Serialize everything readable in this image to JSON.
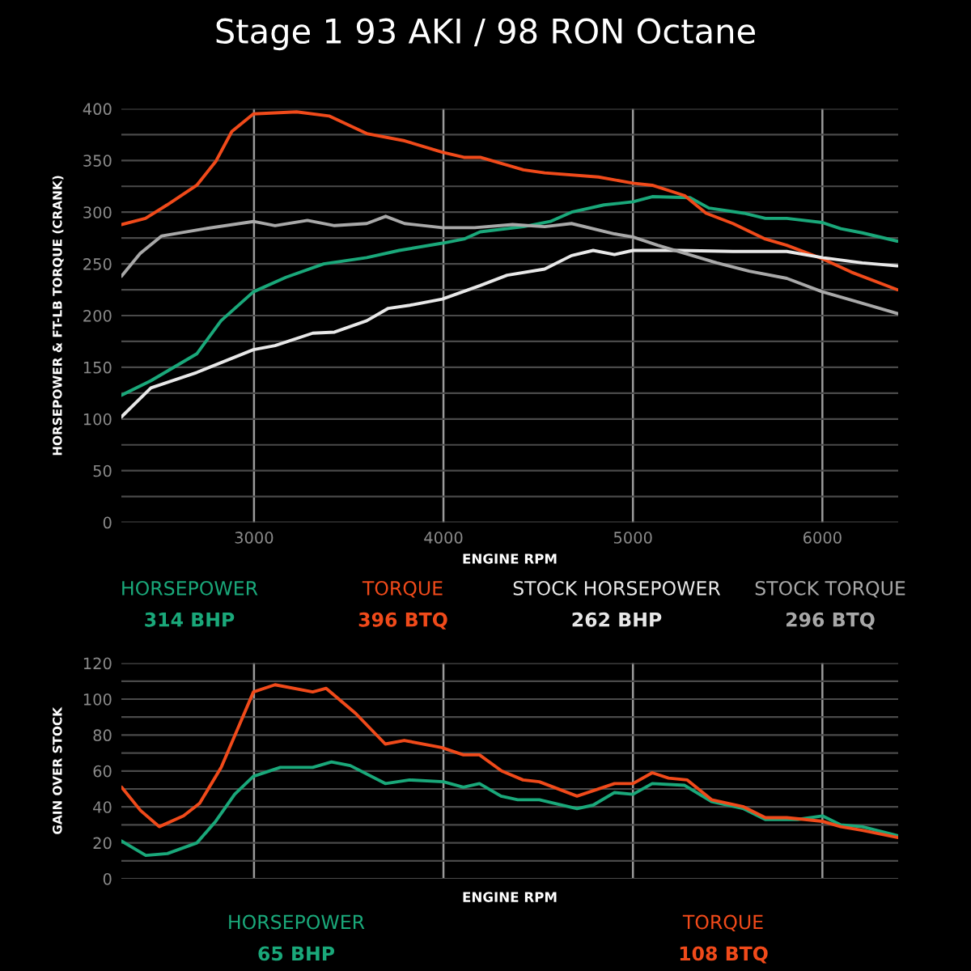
{
  "chart_data": [
    {
      "type": "line",
      "title": "Stage 1 93 AKI / 98 RON Octane",
      "xlabel": "ENGINE RPM",
      "ylabel": "HORSEPOWER & FT-LB TORQUE (CRANK)",
      "xlim": [
        2300,
        6400
      ],
      "xticks": [
        3000,
        4000,
        5000,
        6000
      ],
      "ylim": [
        0,
        400
      ],
      "yticks": [
        0,
        {
          "value": 25,
          "label": null
        },
        50,
        {
          "value": 75,
          "label": null
        },
        100,
        {
          "value": 125,
          "label": null
        },
        150,
        {
          "value": 175,
          "label": null
        },
        200,
        {
          "value": 225,
          "label": null
        },
        250,
        {
          "value": 275,
          "label": null
        },
        300,
        {
          "value": 325,
          "label": null
        },
        350,
        {
          "value": 375,
          "label": null
        },
        400
      ],
      "grid": true,
      "legend": "bottom",
      "marker": "none",
      "line_style": "solid",
      "annotations": [
        "314 BHP",
        "396 BTQ",
        "262 BHP",
        "296 BTQ"
      ],
      "series": [
        {
          "name": "HORSEPOWER",
          "color": "#1aa87a",
          "x": [
            2300,
            2456,
            2698,
            2826,
            2997,
            3168,
            3368,
            3595,
            3766,
            3994,
            4108,
            4194,
            4422,
            4564,
            4676,
            4847,
            5000,
            5102,
            5301,
            5401,
            5585,
            5699,
            5812,
            6000,
            6097,
            6210,
            6395
          ],
          "values": [
            123,
            137,
            163,
            195,
            223,
            237,
            250,
            256,
            263,
            270,
            274,
            281,
            286,
            291,
            300,
            307,
            310,
            315,
            314,
            304,
            299,
            294,
            294,
            290,
            284,
            280,
            272
          ]
        },
        {
          "name": "TORQUE",
          "color": "#f04a1a",
          "x": [
            2300,
            2427,
            2541,
            2698,
            2798,
            2883,
            2997,
            3111,
            3225,
            3396,
            3595,
            3795,
            3994,
            4108,
            4194,
            4422,
            4534,
            4818,
            5000,
            5102,
            5273,
            5386,
            5528,
            5699,
            5812,
            6000,
            6153,
            6395
          ],
          "values": [
            288,
            294,
            307,
            326,
            349,
            378,
            395,
            396,
            397,
            393,
            376,
            369,
            358,
            353,
            353,
            341,
            338,
            334,
            328,
            326,
            316,
            299,
            289,
            274,
            268,
            255,
            242,
            225
          ]
        },
        {
          "name": "STOCK HORSEPOWER",
          "color": "#e8e8e8",
          "x": [
            2300,
            2456,
            2698,
            2997,
            3111,
            3310,
            3425,
            3595,
            3709,
            3823,
            3994,
            4194,
            4336,
            4534,
            4676,
            4790,
            4903,
            5000,
            5244,
            5528,
            5812,
            6000,
            6210,
            6395
          ],
          "values": [
            102,
            130,
            145,
            167,
            171,
            183,
            184,
            195,
            207,
            210,
            216,
            229,
            239,
            245,
            258,
            263,
            259,
            263,
            263,
            262,
            262,
            256,
            251,
            248
          ]
        },
        {
          "name": "STOCK TORQUE",
          "color": "#a8a8a8",
          "x": [
            2300,
            2399,
            2513,
            2741,
            2997,
            3111,
            3282,
            3425,
            3595,
            3695,
            3795,
            3994,
            4165,
            4365,
            4534,
            4676,
            4903,
            5000,
            5131,
            5443,
            5614,
            5812,
            6000,
            6153,
            6395
          ],
          "values": [
            238,
            260,
            277,
            284,
            291,
            287,
            292,
            287,
            289,
            296,
            289,
            285,
            285,
            288,
            286,
            289,
            279,
            276,
            268,
            251,
            243,
            236,
            223,
            215,
            202
          ]
        }
      ]
    },
    {
      "type": "line",
      "xlabel": "ENGINE RPM",
      "ylabel": "GAIN OVER STOCK",
      "xlim": [
        2300,
        6400
      ],
      "xticks": [
        3000,
        4000,
        5000,
        6000
      ],
      "tick_labels": "y",
      "ylim": [
        0,
        120
      ],
      "yticks": [
        0,
        {
          "value": 10,
          "label": null
        },
        20,
        {
          "value": 30,
          "label": null
        },
        40,
        {
          "value": 50,
          "label": null
        },
        60,
        {
          "value": 70,
          "label": null
        },
        80,
        {
          "value": 90,
          "label": null
        },
        100,
        {
          "value": 110,
          "label": null
        },
        120
      ],
      "grid": true,
      "legend": "bottom",
      "marker": "none",
      "line_style": "solid",
      "annotations": [
        "65 BHP",
        "108 BTQ"
      ],
      "series": [
        {
          "name": "HORSEPOWER",
          "color": "#1aa87a",
          "x": [
            2301,
            2429,
            2543,
            2699,
            2798,
            2898,
            2997,
            3139,
            3310,
            3409,
            3508,
            3693,
            3821,
            4000,
            4105,
            4190,
            4304,
            4392,
            4506,
            4705,
            4790,
            4903,
            5000,
            5102,
            5273,
            5415,
            5585,
            5699,
            5869,
            6000,
            6097,
            6210,
            6395
          ],
          "values": [
            21,
            13,
            14,
            20,
            32,
            47,
            57,
            62,
            62,
            65,
            63,
            53,
            55,
            54,
            51,
            53,
            46,
            44,
            44,
            39,
            41,
            48,
            47,
            53,
            52,
            43,
            39,
            33,
            33,
            35,
            30,
            29,
            24
          ]
        },
        {
          "name": "TORQUE",
          "color": "#f04a1a",
          "x": [
            2301,
            2401,
            2500,
            2628,
            2713,
            2827,
            2912,
            2997,
            3111,
            3310,
            3381,
            3537,
            3693,
            3793,
            3991,
            4105,
            4190,
            4307,
            4420,
            4506,
            4705,
            4903,
            5000,
            5102,
            5188,
            5287,
            5415,
            5585,
            5699,
            5812,
            6000,
            6097,
            6210,
            6395
          ],
          "values": [
            51,
            38,
            29,
            35,
            42,
            62,
            83,
            104,
            108,
            104,
            106,
            92,
            75,
            77,
            73,
            69,
            69,
            60,
            55,
            54,
            46,
            53,
            53,
            59,
            56,
            55,
            44,
            40,
            34,
            34,
            32,
            29,
            27,
            23
          ]
        }
      ]
    }
  ]
}
